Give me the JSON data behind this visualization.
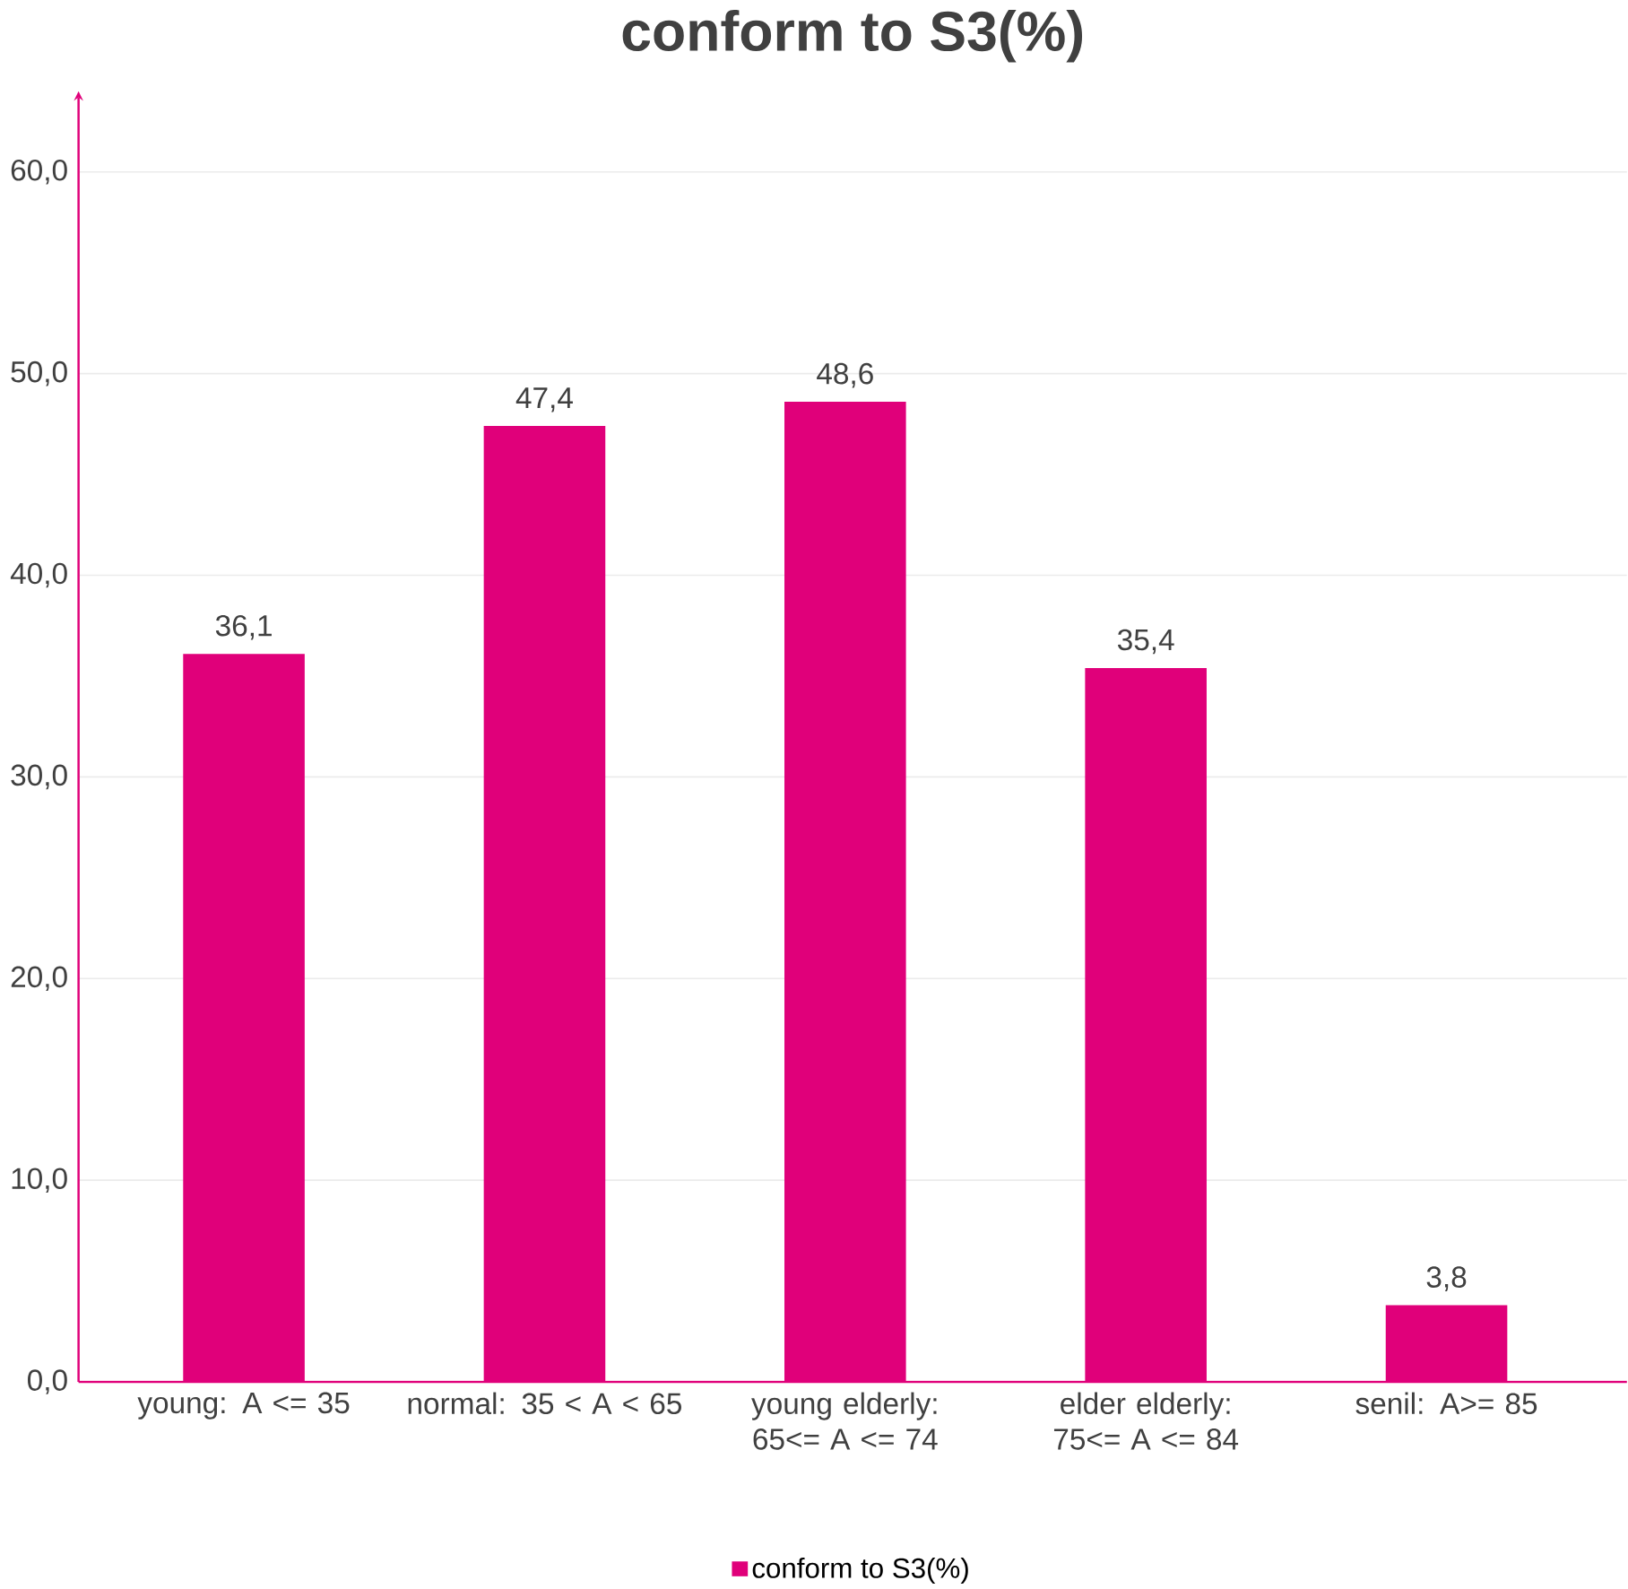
{
  "chart_data": {
    "type": "bar",
    "title": "conform to S3(%)",
    "categories": [
      "young: A <= 35",
      "normal: 35 < A < 65",
      "young elderly: 65<= A <= 74",
      "elder elderly: 75<= A <= 84",
      "senil: A>= 85"
    ],
    "series": [
      {
        "name": "conform to S3(%)",
        "color": "#e0007a",
        "values": [
          36.1,
          47.4,
          48.6,
          35.4,
          3.8
        ],
        "value_labels": [
          "36,1",
          "47,4",
          "48,6",
          "35,4",
          "3,8"
        ]
      }
    ],
    "ylim": [
      0,
      64
    ],
    "yticks": [
      {
        "value": 0,
        "label": "0,0"
      },
      {
        "value": 10,
        "label": "10,0"
      },
      {
        "value": 20,
        "label": "20,0"
      },
      {
        "value": 30,
        "label": "30,0"
      },
      {
        "value": 40,
        "label": "40,0"
      },
      {
        "value": 50,
        "label": "50,0"
      },
      {
        "value": 60,
        "label": "60,0"
      }
    ],
    "grid": "y",
    "legend": "bottom"
  }
}
